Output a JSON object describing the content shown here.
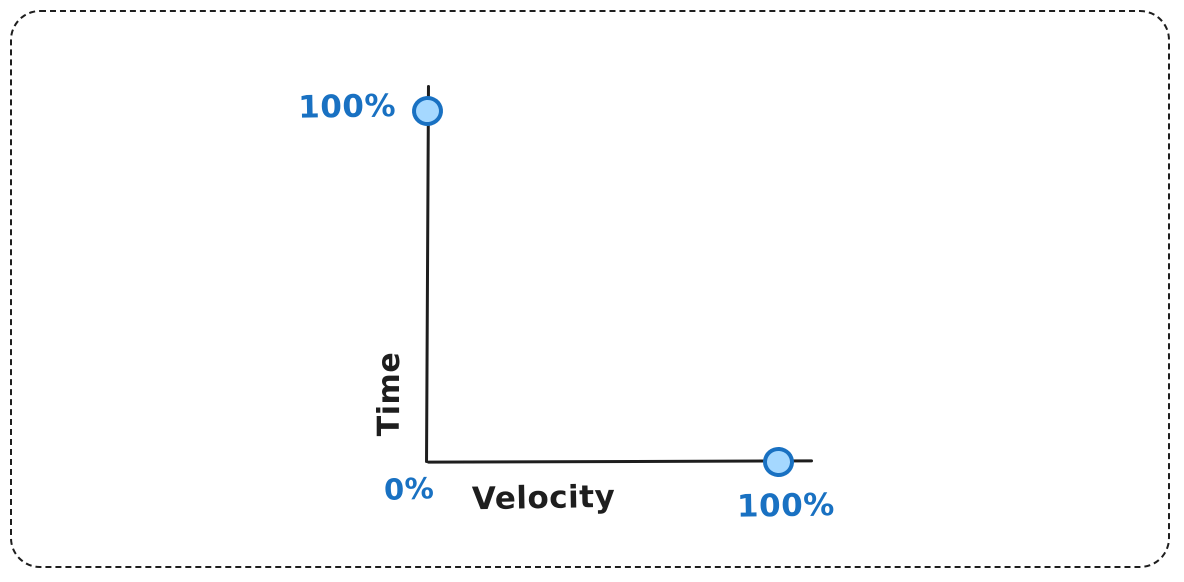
{
  "canvas": {
    "background_color": "#ffffff",
    "frame_style": "dashed-rounded-rectangle",
    "frame_color": "#1e1e1e"
  },
  "chart_data": {
    "type": "scatter",
    "style": "hand-drawn-sketch",
    "title": "",
    "xlabel": "Velocity",
    "ylabel": "Time",
    "x_range_pct": [
      0,
      100
    ],
    "y_range_pct": [
      0,
      100
    ],
    "x_ticks": [
      {
        "value": 0,
        "label": "0%"
      },
      {
        "value": 100,
        "label": "100%"
      }
    ],
    "y_ticks": [
      {
        "value": 100,
        "label": "100%"
      }
    ],
    "points": [
      {
        "name": "time-100pct-point",
        "x": 0,
        "y": 100
      },
      {
        "name": "velocity-100pct-point",
        "x": 100,
        "y": 0
      }
    ],
    "legend": null,
    "grid": false,
    "colors": {
      "axis": "#1e1e1e",
      "axis_label": "#1e1e1e",
      "tick_label": "#1971c2",
      "point_fill": "#a5d8ff",
      "point_stroke": "#1971c2"
    }
  }
}
